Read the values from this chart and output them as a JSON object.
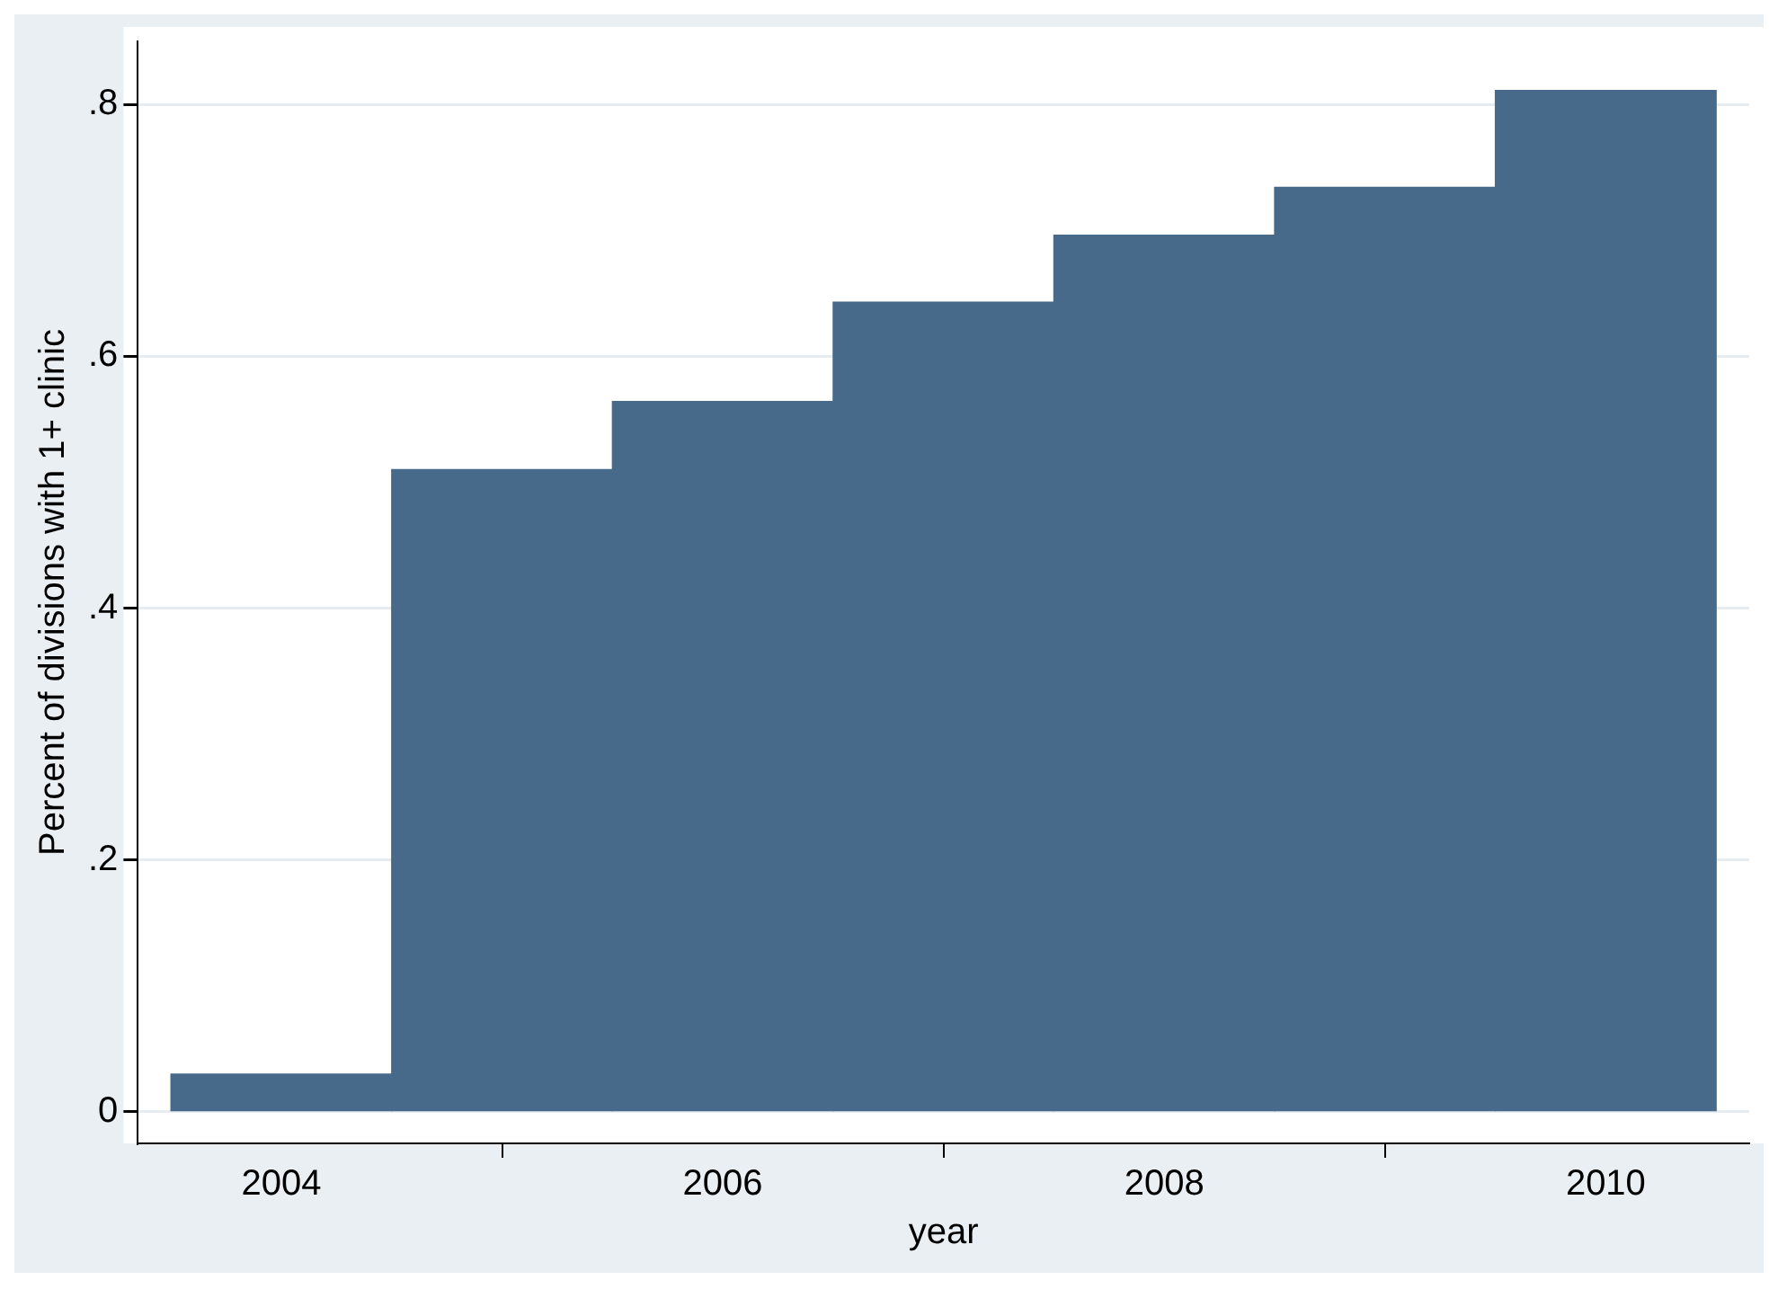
{
  "chart_data": {
    "type": "histogram",
    "xlabel": "year",
    "ylabel": "Percent of divisions with 1+ clinic",
    "bins": [
      2003.5,
      2004.5,
      2005.5,
      2006.5,
      2007.5,
      2008.5,
      2009.5,
      2010.5
    ],
    "values": [
      0.03,
      0.51,
      0.564,
      0.643,
      0.696,
      0.734,
      0.811
    ],
    "color": "#476a8a",
    "xlim": [
      2003.35,
      2010.65
    ],
    "xticks": [
      2004,
      2006,
      2008,
      2010
    ],
    "ylim": [
      -0.025,
      0.85
    ],
    "yticks": [
      {
        "value": 0,
        "label": "0"
      },
      {
        "value": 0.2,
        "label": ".2"
      },
      {
        "value": 0.4,
        "label": ".4"
      },
      {
        "value": 0.6,
        "label": ".6"
      },
      {
        "value": 0.8,
        "label": ".8"
      }
    ],
    "grid": "y"
  }
}
